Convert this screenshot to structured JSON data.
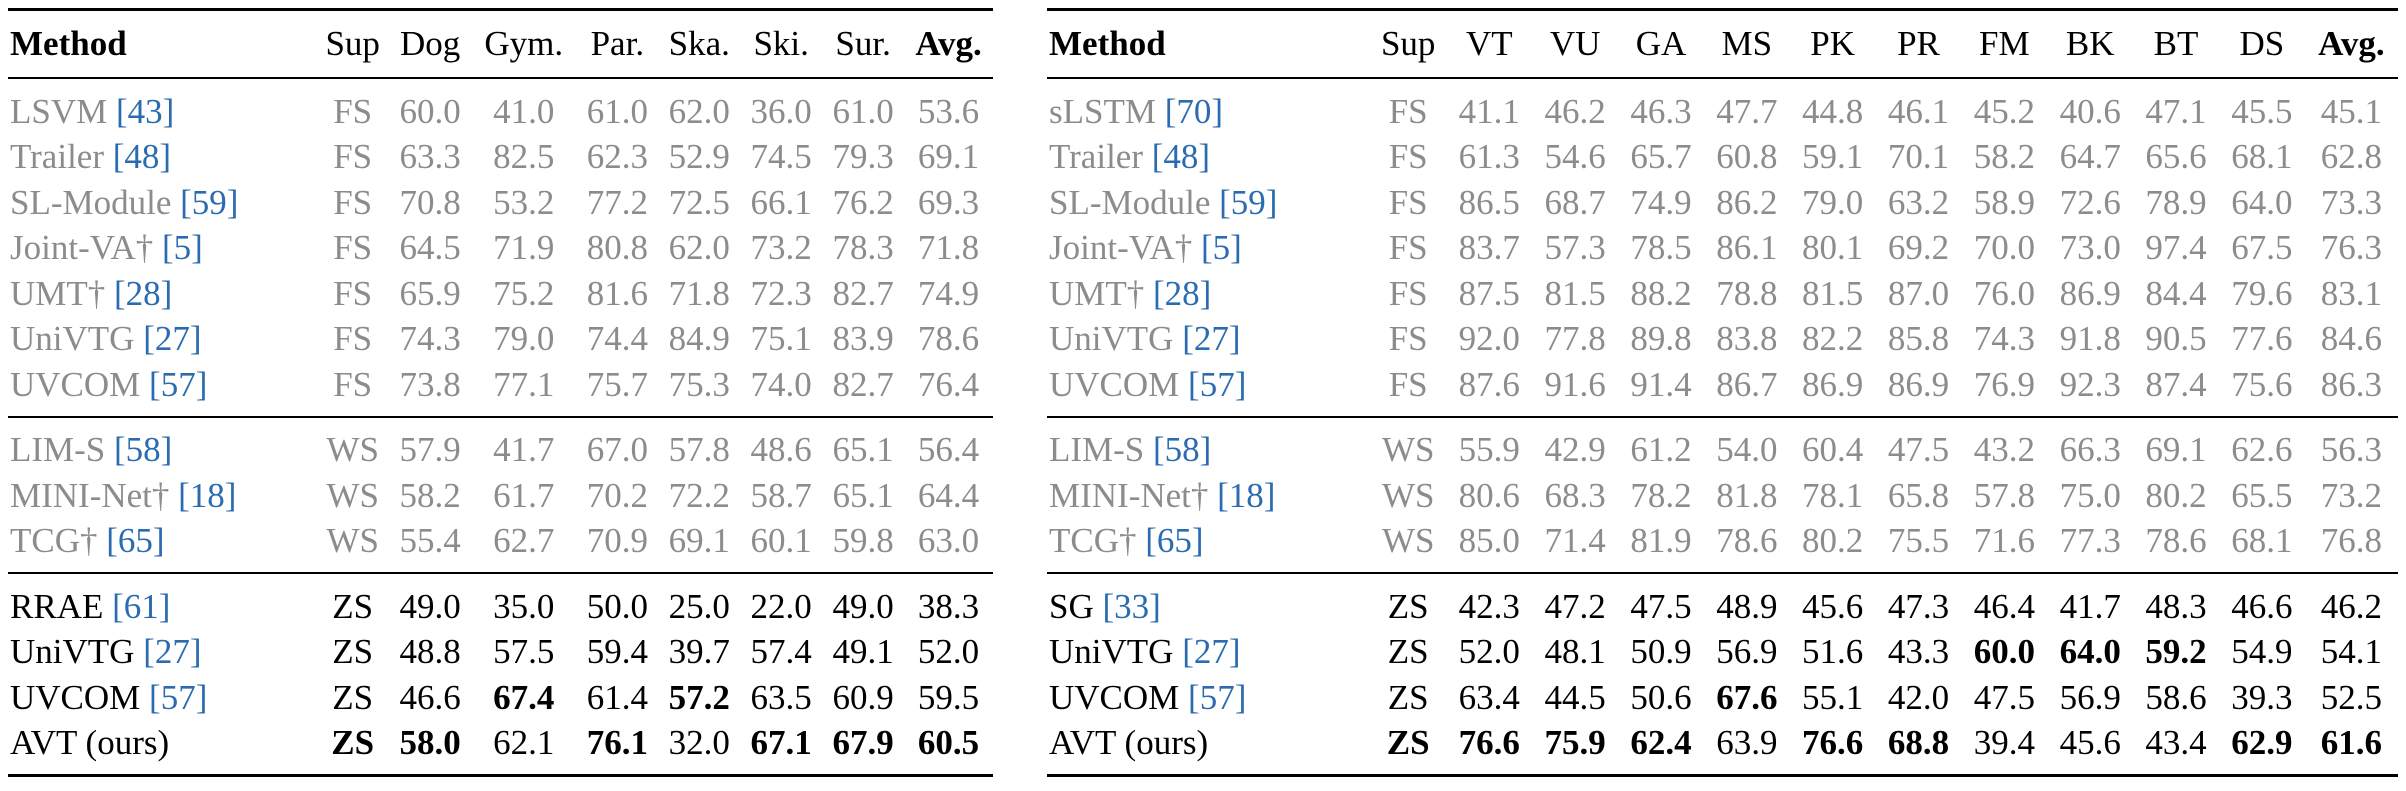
{
  "left_table": {
    "headers": [
      "Method",
      "Sup",
      "Dog",
      "Gym.",
      "Par.",
      "Ska.",
      "Ski.",
      "Sur.",
      "Avg."
    ],
    "groups": [
      [
        {
          "name": "LSVM",
          "ref": "[43]",
          "sup": "FS",
          "values": [
            "60.0",
            "41.0",
            "61.0",
            "62.0",
            "36.0",
            "61.0",
            "53.6"
          ]
        },
        {
          "name": "Trailer",
          "ref": "[48]",
          "sup": "FS",
          "values": [
            "63.3",
            "82.5",
            "62.3",
            "52.9",
            "74.5",
            "79.3",
            "69.1"
          ]
        },
        {
          "name": "SL-Module",
          "ref": "[59]",
          "sup": "FS",
          "values": [
            "70.8",
            "53.2",
            "77.2",
            "72.5",
            "66.1",
            "76.2",
            "69.3"
          ]
        },
        {
          "name": "Joint-VA†",
          "ref": "[5]",
          "sup": "FS",
          "values": [
            "64.5",
            "71.9",
            "80.8",
            "62.0",
            "73.2",
            "78.3",
            "71.8"
          ]
        },
        {
          "name": "UMT†",
          "ref": "[28]",
          "sup": "FS",
          "values": [
            "65.9",
            "75.2",
            "81.6",
            "71.8",
            "72.3",
            "82.7",
            "74.9"
          ]
        },
        {
          "name": "UniVTG",
          "ref": "[27]",
          "sup": "FS",
          "values": [
            "74.3",
            "79.0",
            "74.4",
            "84.9",
            "75.1",
            "83.9",
            "78.6"
          ]
        },
        {
          "name": "UVCOM",
          "ref": "[57]",
          "sup": "FS",
          "values": [
            "73.8",
            "77.1",
            "75.7",
            "75.3",
            "74.0",
            "82.7",
            "76.4"
          ]
        }
      ],
      [
        {
          "name": "LIM-S",
          "ref": "[58]",
          "sup": "WS",
          "values": [
            "57.9",
            "41.7",
            "67.0",
            "57.8",
            "48.6",
            "65.1",
            "56.4"
          ]
        },
        {
          "name": "MINI-Net†",
          "ref": "[18]",
          "sup": "WS",
          "values": [
            "58.2",
            "61.7",
            "70.2",
            "72.2",
            "58.7",
            "65.1",
            "64.4"
          ]
        },
        {
          "name": "TCG†",
          "ref": "[65]",
          "sup": "WS",
          "values": [
            "55.4",
            "62.7",
            "70.9",
            "69.1",
            "60.1",
            "59.8",
            "63.0"
          ]
        }
      ],
      [
        {
          "name": "RRAE",
          "ref": "[61]",
          "sup": "ZS",
          "values": [
            "49.0",
            "35.0",
            "50.0",
            "25.0",
            "22.0",
            "49.0",
            "38.3"
          ]
        },
        {
          "name": "UniVTG",
          "ref": "[27]",
          "sup": "ZS",
          "values": [
            "48.8",
            "57.5",
            "59.4",
            "39.7",
            "57.4",
            "49.1",
            "52.0"
          ]
        },
        {
          "name": "UVCOM",
          "ref": "[57]",
          "sup": "ZS",
          "values": [
            "46.6",
            "67.4",
            "61.4",
            "57.2",
            "63.5",
            "60.9",
            "59.5"
          ],
          "bold": [
            1,
            3
          ]
        },
        {
          "name": "AVT (ours)",
          "ref": "",
          "sup": "ZS",
          "values": [
            "58.0",
            "62.1",
            "76.1",
            "32.0",
            "67.1",
            "67.9",
            "60.5"
          ],
          "bold": [
            0,
            2,
            4,
            5,
            6
          ]
        }
      ]
    ]
  },
  "right_table": {
    "headers": [
      "Method",
      "Sup",
      "VT",
      "VU",
      "GA",
      "MS",
      "PK",
      "PR",
      "FM",
      "BK",
      "BT",
      "DS",
      "Avg."
    ],
    "groups": [
      [
        {
          "name": "sLSTM",
          "ref": "[70]",
          "sup": "FS",
          "values": [
            "41.1",
            "46.2",
            "46.3",
            "47.7",
            "44.8",
            "46.1",
            "45.2",
            "40.6",
            "47.1",
            "45.5",
            "45.1"
          ]
        },
        {
          "name": "Trailer",
          "ref": "[48]",
          "sup": "FS",
          "values": [
            "61.3",
            "54.6",
            "65.7",
            "60.8",
            "59.1",
            "70.1",
            "58.2",
            "64.7",
            "65.6",
            "68.1",
            "62.8"
          ]
        },
        {
          "name": "SL-Module",
          "ref": "[59]",
          "sup": "FS",
          "values": [
            "86.5",
            "68.7",
            "74.9",
            "86.2",
            "79.0",
            "63.2",
            "58.9",
            "72.6",
            "78.9",
            "64.0",
            "73.3"
          ]
        },
        {
          "name": "Joint-VA†",
          "ref": "[5]",
          "sup": "FS",
          "values": [
            "83.7",
            "57.3",
            "78.5",
            "86.1",
            "80.1",
            "69.2",
            "70.0",
            "73.0",
            "97.4",
            "67.5",
            "76.3"
          ]
        },
        {
          "name": "UMT†",
          "ref": "[28]",
          "sup": "FS",
          "values": [
            "87.5",
            "81.5",
            "88.2",
            "78.8",
            "81.5",
            "87.0",
            "76.0",
            "86.9",
            "84.4",
            "79.6",
            "83.1"
          ]
        },
        {
          "name": "UniVTG",
          "ref": "[27]",
          "sup": "FS",
          "values": [
            "92.0",
            "77.8",
            "89.8",
            "83.8",
            "82.2",
            "85.8",
            "74.3",
            "91.8",
            "90.5",
            "77.6",
            "84.6"
          ]
        },
        {
          "name": "UVCOM",
          "ref": "[57]",
          "sup": "FS",
          "values": [
            "87.6",
            "91.6",
            "91.4",
            "86.7",
            "86.9",
            "86.9",
            "76.9",
            "92.3",
            "87.4",
            "75.6",
            "86.3"
          ]
        }
      ],
      [
        {
          "name": "LIM-S",
          "ref": "[58]",
          "sup": "WS",
          "values": [
            "55.9",
            "42.9",
            "61.2",
            "54.0",
            "60.4",
            "47.5",
            "43.2",
            "66.3",
            "69.1",
            "62.6",
            "56.3"
          ]
        },
        {
          "name": "MINI-Net†",
          "ref": "[18]",
          "sup": "WS",
          "values": [
            "80.6",
            "68.3",
            "78.2",
            "81.8",
            "78.1",
            "65.8",
            "57.8",
            "75.0",
            "80.2",
            "65.5",
            "73.2"
          ]
        },
        {
          "name": "TCG†",
          "ref": "[65]",
          "sup": "WS",
          "values": [
            "85.0",
            "71.4",
            "81.9",
            "78.6",
            "80.2",
            "75.5",
            "71.6",
            "77.3",
            "78.6",
            "68.1",
            "76.8"
          ]
        }
      ],
      [
        {
          "name": "SG",
          "ref": "[33]",
          "sup": "ZS",
          "values": [
            "42.3",
            "47.2",
            "47.5",
            "48.9",
            "45.6",
            "47.3",
            "46.4",
            "41.7",
            "48.3",
            "46.6",
            "46.2"
          ]
        },
        {
          "name": "UniVTG",
          "ref": "[27]",
          "sup": "ZS",
          "values": [
            "52.0",
            "48.1",
            "50.9",
            "56.9",
            "51.6",
            "43.3",
            "60.0",
            "64.0",
            "59.2",
            "54.9",
            "54.1"
          ],
          "bold": [
            6,
            7,
            8
          ]
        },
        {
          "name": "UVCOM",
          "ref": "[57]",
          "sup": "ZS",
          "values": [
            "63.4",
            "44.5",
            "50.6",
            "67.6",
            "55.1",
            "42.0",
            "47.5",
            "56.9",
            "58.6",
            "39.3",
            "52.5"
          ],
          "bold": [
            3
          ]
        },
        {
          "name": "AVT (ours)",
          "ref": "",
          "sup": "ZS",
          "values": [
            "76.6",
            "75.9",
            "62.4",
            "63.9",
            "76.6",
            "68.8",
            "39.4",
            "45.6",
            "43.4",
            "62.9",
            "61.6"
          ],
          "bold": [
            0,
            1,
            2,
            4,
            5,
            9,
            10
          ]
        }
      ]
    ]
  }
}
